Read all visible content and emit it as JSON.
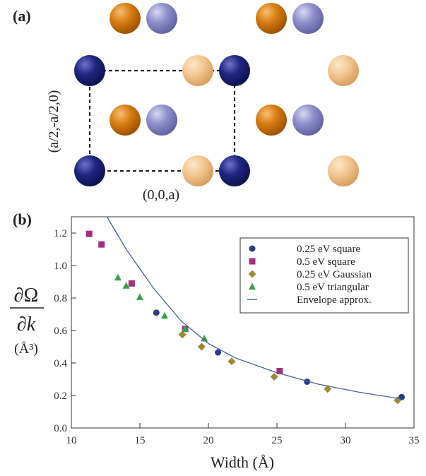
{
  "panel_a": {
    "label": "(a)",
    "axis_vertical": "(a/2,-a/2,0)",
    "axis_horizontal": "(0,0,a)"
  },
  "chart_data": {
    "type": "scatter",
    "panel_label": "(b)",
    "x_label": "Width (Å)",
    "y_label_numerator": "∂Ω",
    "y_label_denominator": "∂k",
    "y_label_unit": "(Å³)",
    "xlim": [
      10,
      35
    ],
    "ylim": [
      0,
      1.3
    ],
    "xticks": [
      10,
      15,
      20,
      25,
      30,
      35
    ],
    "yticks": [
      {
        "value": 0,
        "label": "0.0"
      },
      0.2,
      0.4,
      0.6,
      0.8,
      {
        "value": 1,
        "label": "1.0"
      },
      1.2
    ],
    "series": [
      {
        "name": "0.25 eV square",
        "color": "#2b3a8f",
        "marker": "circle",
        "x": [
          16.2,
          20.7,
          27.2,
          34.1
        ],
        "values": [
          0.71,
          0.465,
          0.285,
          0.19
        ]
      },
      {
        "name": "0.5 eV square",
        "color": "#a3307a",
        "marker": "square",
        "x": [
          11.3,
          12.2,
          14.4,
          18.3,
          25.2
        ],
        "values": [
          1.195,
          1.13,
          0.89,
          0.61,
          0.35
        ]
      },
      {
        "name": "0.25 eV Gaussian",
        "color": "#9c8a35",
        "marker": "diamond",
        "x": [
          18.1,
          19.5,
          21.7,
          24.8,
          28.7,
          33.8
        ],
        "values": [
          0.575,
          0.5,
          0.41,
          0.315,
          0.24,
          0.17
        ]
      },
      {
        "name": "0.5 eV triangular",
        "color": "#3a9e4a",
        "marker": "triangle",
        "x": [
          13.4,
          14.0,
          15.0,
          16.8,
          18.3,
          19.7
        ],
        "values": [
          0.925,
          0.875,
          0.805,
          0.69,
          0.61,
          0.55
        ]
      },
      {
        "name": "Envelope approx.",
        "color": "#4a5fa3",
        "marker": "line",
        "x": [
          12.6,
          14,
          16,
          18,
          20,
          22,
          25,
          28,
          31,
          34
        ],
        "values": [
          1.3,
          1.1,
          0.86,
          0.66,
          0.52,
          0.43,
          0.34,
          0.27,
          0.22,
          0.18
        ]
      }
    ]
  }
}
